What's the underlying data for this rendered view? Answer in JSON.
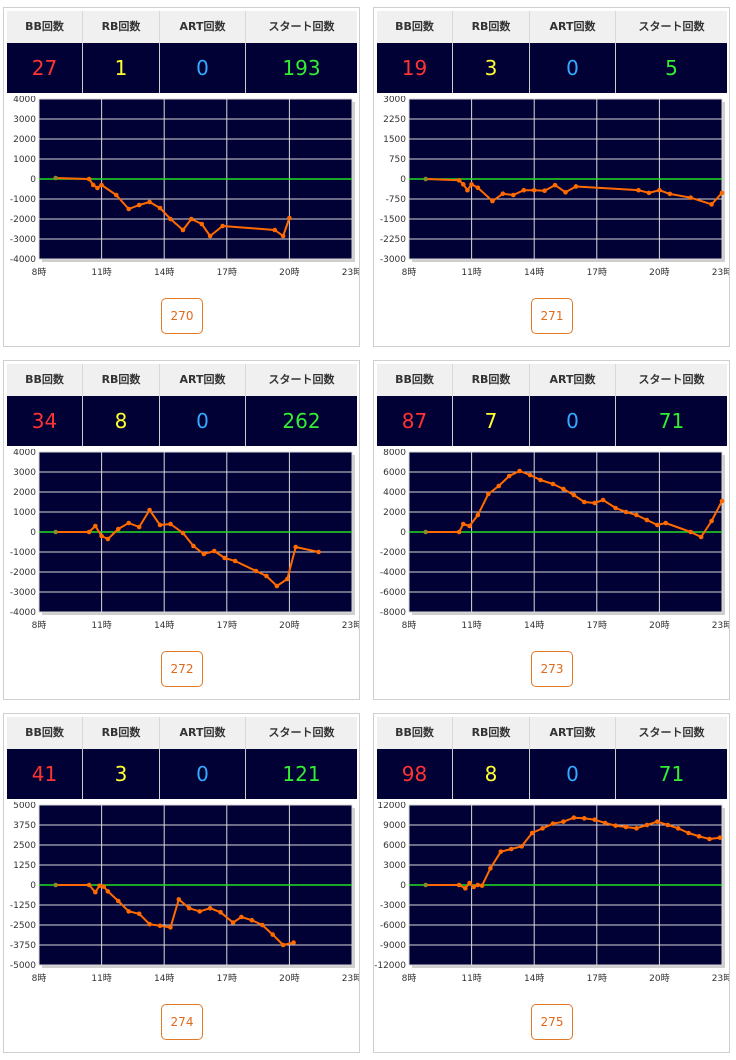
{
  "stat_headers": [
    "BB回数",
    "RB回数",
    "ART回数",
    "スタート回数"
  ],
  "colors": {
    "bb": "#ff3333",
    "rb": "#ffff33",
    "art": "#33aaff",
    "start": "#33ee33",
    "line": "#ff6a00",
    "zero_line": "#22dd22",
    "plot_bg": "#020135",
    "grid": "#d8d8d8"
  },
  "machines": [
    {
      "label": "270",
      "bb": "27",
      "rb": "1",
      "art": "0",
      "start": "193"
    },
    {
      "label": "271",
      "bb": "19",
      "rb": "3",
      "art": "0",
      "start": "5"
    },
    {
      "label": "272",
      "bb": "34",
      "rb": "8",
      "art": "0",
      "start": "262"
    },
    {
      "label": "273",
      "bb": "87",
      "rb": "7",
      "art": "0",
      "start": "71"
    },
    {
      "label": "274",
      "bb": "41",
      "rb": "3",
      "art": "0",
      "start": "121"
    },
    {
      "label": "275",
      "bb": "98",
      "rb": "8",
      "art": "0",
      "start": "71"
    }
  ],
  "chart_data": [
    {
      "type": "line",
      "xlim": [
        8,
        23
      ],
      "ylim": [
        -4000,
        4000
      ],
      "x_ticks": [
        "8時",
        "11時",
        "14時",
        "17時",
        "20時",
        "23時"
      ],
      "y_ticks": [
        4000,
        3000,
        2000,
        1000,
        0,
        -1000,
        -2000,
        -3000,
        -4000
      ],
      "x": [
        8.8,
        10.4,
        10.6,
        10.8,
        11.0,
        11.7,
        12.3,
        12.8,
        13.3,
        13.8,
        14.3,
        14.9,
        15.3,
        15.8,
        16.2,
        16.8,
        19.3,
        19.7,
        20.0
      ],
      "y": [
        50,
        0,
        -300,
        -450,
        -300,
        -800,
        -1500,
        -1300,
        -1150,
        -1450,
        -2000,
        -2550,
        -2000,
        -2250,
        -2850,
        -2350,
        -2550,
        -2850,
        -1950
      ]
    },
    {
      "type": "line",
      "xlim": [
        8,
        23
      ],
      "ylim": [
        -3000,
        3000
      ],
      "x_ticks": [
        "8時",
        "11時",
        "14時",
        "17時",
        "20時",
        "23時"
      ],
      "y_ticks": [
        3000,
        2250,
        1500,
        750,
        0,
        -750,
        -1500,
        -2250,
        -3000
      ],
      "x": [
        8.8,
        10.4,
        10.6,
        10.8,
        11.0,
        11.3,
        12.0,
        12.5,
        13.0,
        13.5,
        14.0,
        14.5,
        15.0,
        15.5,
        16.0,
        19.0,
        19.5,
        20.0,
        20.5,
        21.5,
        22.5,
        23.0
      ],
      "y": [
        0,
        -50,
        -200,
        -420,
        -200,
        -330,
        -830,
        -550,
        -600,
        -420,
        -420,
        -440,
        -230,
        -500,
        -280,
        -420,
        -520,
        -420,
        -560,
        -700,
        -950,
        -520
      ]
    },
    {
      "type": "line",
      "xlim": [
        8,
        23
      ],
      "ylim": [
        -4000,
        4000
      ],
      "x_ticks": [
        "8時",
        "11時",
        "14時",
        "17時",
        "20時",
        "23時"
      ],
      "y_ticks": [
        4000,
        3000,
        2000,
        1000,
        0,
        -1000,
        -2000,
        -3000,
        -4000
      ],
      "x": [
        8.8,
        10.4,
        10.7,
        11.0,
        11.3,
        11.8,
        12.3,
        12.8,
        13.3,
        13.8,
        14.3,
        14.9,
        15.4,
        15.9,
        16.4,
        16.9,
        17.4,
        18.4,
        18.9,
        19.4,
        19.9,
        20.3,
        21.4
      ],
      "y": [
        0,
        0,
        300,
        -200,
        -350,
        150,
        450,
        250,
        1100,
        350,
        400,
        -50,
        -700,
        -1100,
        -950,
        -1300,
        -1450,
        -1950,
        -2200,
        -2700,
        -2350,
        -750,
        -1000
      ]
    },
    {
      "type": "line",
      "xlim": [
        8,
        23
      ],
      "ylim": [
        -8000,
        8000
      ],
      "x_ticks": [
        "8時",
        "11時",
        "14時",
        "17時",
        "20時",
        "23時"
      ],
      "y_ticks": [
        8000,
        6000,
        4000,
        2000,
        0,
        -2000,
        -4000,
        -6000,
        -8000
      ],
      "x": [
        8.8,
        10.4,
        10.6,
        10.9,
        11.3,
        11.8,
        12.3,
        12.8,
        13.3,
        13.8,
        14.3,
        14.9,
        15.4,
        15.9,
        16.4,
        16.9,
        17.3,
        17.9,
        18.4,
        18.9,
        19.4,
        19.9,
        20.3,
        21.5,
        22.0,
        22.5,
        23.0
      ],
      "y": [
        0,
        0,
        800,
        600,
        1700,
        3800,
        4600,
        5600,
        6100,
        5700,
        5200,
        4800,
        4300,
        3700,
        3000,
        2900,
        3200,
        2400,
        2000,
        1700,
        1200,
        700,
        900,
        0,
        -500,
        1100,
        3100
      ]
    },
    {
      "type": "line",
      "xlim": [
        8,
        23
      ],
      "ylim": [
        -5000,
        5000
      ],
      "x_ticks": [
        "8時",
        "11時",
        "14時",
        "17時",
        "20時",
        "23時"
      ],
      "y_ticks": [
        5000,
        3750,
        2500,
        1250,
        0,
        -1250,
        -2500,
        -3750,
        -5000
      ],
      "x": [
        8.8,
        10.4,
        10.7,
        10.9,
        11.1,
        11.3,
        11.8,
        12.3,
        12.8,
        13.3,
        13.8,
        14.3,
        14.7,
        15.2,
        15.7,
        16.2,
        16.7,
        17.3,
        17.7,
        18.2,
        18.7,
        19.2,
        19.7,
        20.2
      ],
      "y": [
        0,
        0,
        -450,
        -50,
        -100,
        -400,
        -1000,
        -1650,
        -1800,
        -2450,
        -2550,
        -2650,
        -900,
        -1450,
        -1650,
        -1450,
        -1700,
        -2350,
        -2000,
        -2200,
        -2500,
        -3100,
        -3750,
        -3600
      ]
    },
    {
      "type": "line",
      "xlim": [
        8,
        23
      ],
      "ylim": [
        -12000,
        12000
      ],
      "x_ticks": [
        "8時",
        "11時",
        "14時",
        "17時",
        "20時",
        "23時"
      ],
      "y_ticks": [
        12000,
        9000,
        6000,
        3000,
        0,
        -3000,
        -6000,
        -9000,
        -12000
      ],
      "x": [
        8.8,
        10.4,
        10.7,
        10.9,
        11.1,
        11.3,
        11.5,
        11.9,
        12.4,
        12.9,
        13.4,
        13.9,
        14.4,
        14.9,
        15.4,
        15.9,
        16.4,
        16.9,
        17.4,
        17.9,
        18.4,
        18.9,
        19.4,
        19.9,
        20.4,
        20.9,
        21.4,
        21.9,
        22.4,
        22.9
      ],
      "y": [
        0,
        0,
        -500,
        300,
        -300,
        0,
        -100,
        2500,
        5000,
        5400,
        5800,
        7800,
        8500,
        9200,
        9500,
        10100,
        10000,
        9800,
        9300,
        8900,
        8700,
        8500,
        9000,
        9500,
        9000,
        8500,
        7800,
        7300,
        6900,
        7100
      ]
    }
  ]
}
